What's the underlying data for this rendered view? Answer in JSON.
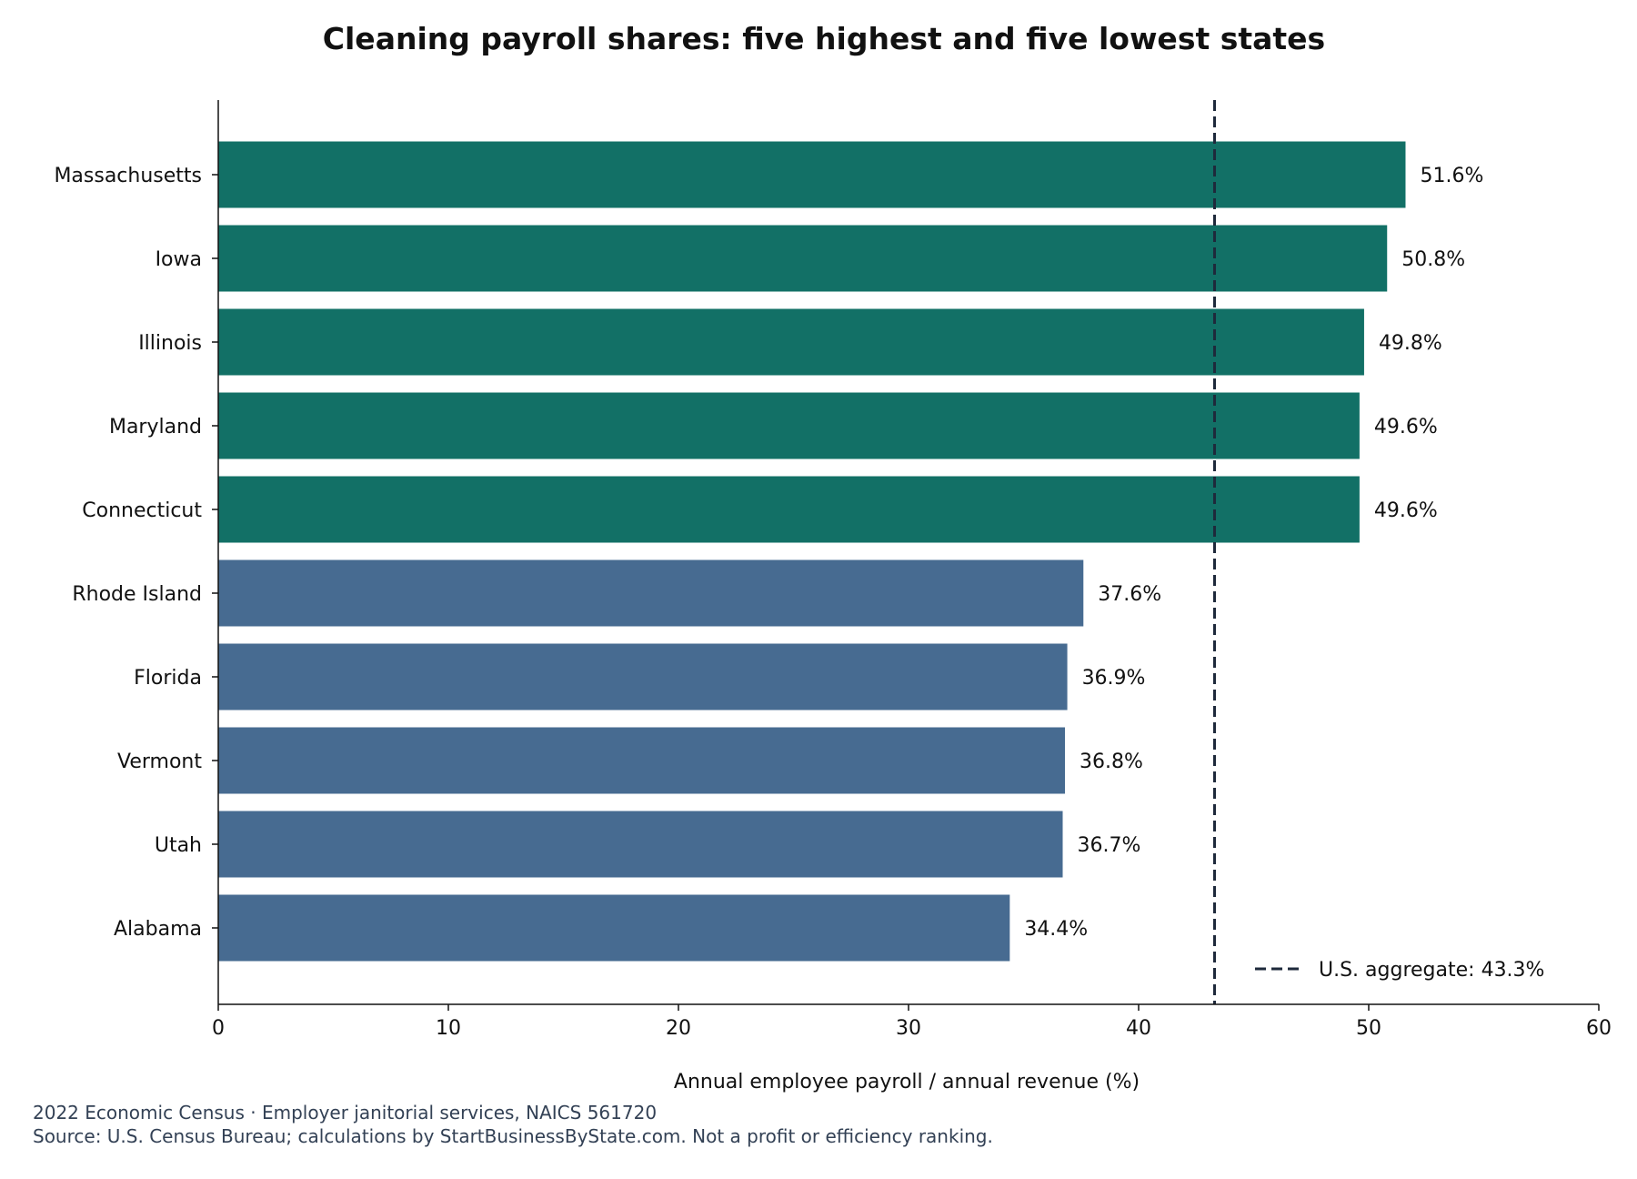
{
  "chart_data": {
    "type": "bar",
    "orientation": "horizontal",
    "title": "Cleaning payroll shares: five highest and five lowest states",
    "xlabel": "Annual employee payroll / annual revenue (%)",
    "ylabel": "",
    "xlim": [
      0,
      60
    ],
    "xticks": [
      0,
      10,
      20,
      30,
      40,
      50,
      60
    ],
    "grid": false,
    "legend_position": "bottom-right",
    "categories": [
      "Massachusetts",
      "Iowa",
      "Illinois",
      "Maryland",
      "Connecticut",
      "Rhode Island",
      "Florida",
      "Vermont",
      "Utah",
      "Alabama"
    ],
    "values": [
      51.6,
      50.8,
      49.8,
      49.6,
      49.6,
      37.6,
      36.9,
      36.8,
      36.7,
      34.4
    ],
    "value_labels": [
      "51.6%",
      "50.8%",
      "49.8%",
      "49.6%",
      "49.6%",
      "37.6%",
      "36.9%",
      "36.8%",
      "36.7%",
      "34.4%"
    ],
    "groups": [
      "high",
      "high",
      "high",
      "high",
      "high",
      "low",
      "low",
      "low",
      "low",
      "low"
    ],
    "colors": {
      "high": "#127066",
      "low": "#476b91",
      "reference": "#1e293b"
    },
    "reference_line": {
      "value": 43.3,
      "label": "U.S. aggregate: 43.3%"
    }
  },
  "footnotes": [
    "2022 Economic Census · Employer janitorial services, NAICS 561720",
    "Source: U.S. Census Bureau; calculations by StartBusinessByState.com. Not a profit or efficiency ranking."
  ]
}
